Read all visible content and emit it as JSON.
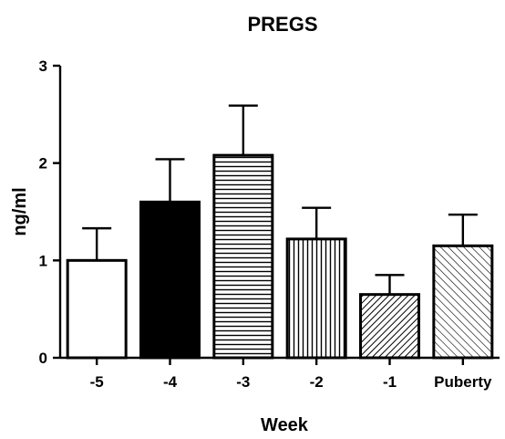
{
  "chart_data": {
    "type": "bar",
    "title": "PREGS",
    "xlabel": "Week",
    "ylabel": "ng/ml",
    "ylim": [
      0,
      3
    ],
    "yticks": [
      0,
      1,
      2,
      3
    ],
    "categories": [
      "-5",
      "-4",
      "-3",
      "-2",
      "-1",
      "Puberty"
    ],
    "values": [
      1.0,
      1.6,
      2.08,
      1.22,
      0.65,
      1.15
    ],
    "error_upper": [
      0.33,
      0.44,
      0.51,
      0.32,
      0.2,
      0.32
    ],
    "fills": [
      "white",
      "black",
      "horizontal-lines",
      "vertical-lines",
      "dense-diagonal",
      "diagonal"
    ],
    "grid": false,
    "legend": "none"
  }
}
